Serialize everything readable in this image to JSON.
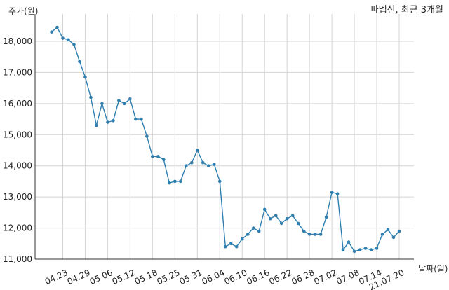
{
  "chart_data": {
    "type": "line",
    "title": "파멥신, 최근 3개월",
    "ylabel": "주가(원)",
    "xlabel": "날짜(일)",
    "ylim": [
      11000,
      18800
    ],
    "y_ticks": [
      11000,
      12000,
      13000,
      14000,
      15000,
      16000,
      17000,
      18000
    ],
    "y_tick_labels": [
      "11,000",
      "12,000",
      "13,000",
      "14,000",
      "15,000",
      "16,000",
      "17,000",
      "18,000"
    ],
    "x_tick_labels": [
      "04.23",
      "04.29",
      "05.06",
      "05.12",
      "05.18",
      "05.25",
      "05.31",
      "06.04",
      "06.10",
      "06.16",
      "06.22",
      "06.28",
      "07.02",
      "07.08",
      "07.14",
      "21.07.20"
    ],
    "x_tick_index": [
      2,
      6,
      10,
      14,
      18,
      22,
      26,
      30,
      34,
      38,
      42,
      46,
      50,
      54,
      58,
      62
    ],
    "grid": true,
    "series": [
      {
        "color": "#2e7fb0",
        "values": [
          18300,
          18450,
          18100,
          18050,
          17900,
          17350,
          16850,
          16200,
          15300,
          16000,
          15400,
          15450,
          16100,
          16000,
          16150,
          15500,
          15500,
          14950,
          14300,
          14300,
          14200,
          13450,
          13500,
          13500,
          14000,
          14100,
          14500,
          14100,
          14000,
          14050,
          13500,
          11400,
          11500,
          11400,
          11650,
          11800,
          12000,
          11900,
          12600,
          12300,
          12400,
          12150,
          12300,
          12400,
          12150,
          11900,
          11800,
          11800,
          11800,
          12350,
          13150,
          13100,
          11300,
          11550,
          11250,
          11300,
          11350,
          11300,
          11350,
          11800,
          11950,
          11700,
          11900
        ]
      }
    ]
  }
}
